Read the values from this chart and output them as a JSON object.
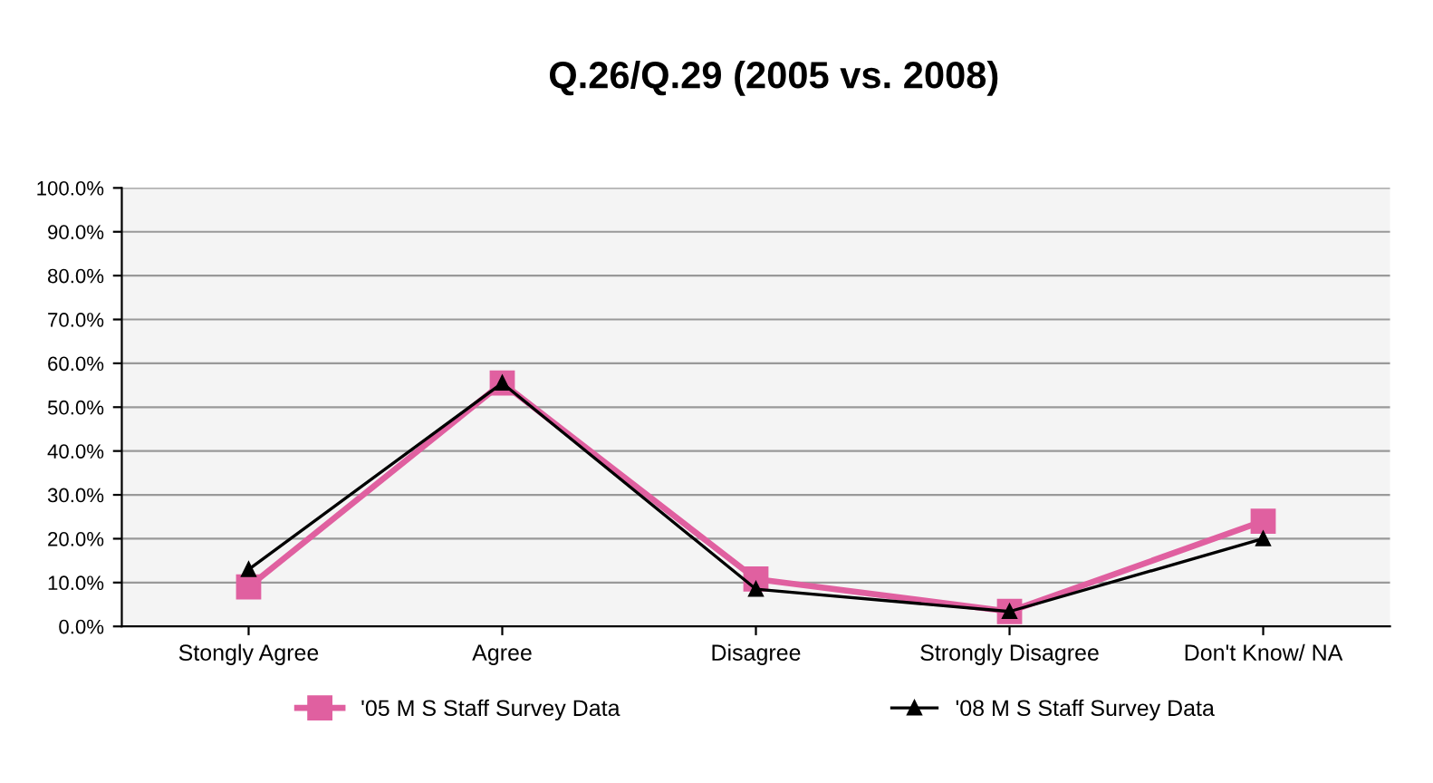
{
  "chart_data": {
    "type": "line",
    "title": "Q.26/Q.29 (2005 vs. 2008)",
    "categories": [
      "Stongly Agree",
      "Agree",
      "Disagree",
      "Strongly Disagree",
      "Don't Know/ NA"
    ],
    "series": [
      {
        "name": "'05 M S Staff Survey Data",
        "color": "#e060a0",
        "marker": "square",
        "values": [
          9,
          55.5,
          10.8,
          3.4,
          24
        ]
      },
      {
        "name": "'08 M S Staff Survey Data",
        "color": "#000000",
        "marker": "triangle",
        "values": [
          13,
          55.5,
          8.5,
          3.4,
          20
        ]
      }
    ],
    "ylim": [
      0,
      100
    ],
    "yticks": [
      {
        "value": 0,
        "label": "0.0%"
      },
      {
        "value": 10,
        "label": "10.0%"
      },
      {
        "value": 20,
        "label": "20.0%"
      },
      {
        "value": 30,
        "label": "30.0%"
      },
      {
        "value": 40,
        "label": "40.0%"
      },
      {
        "value": 50,
        "label": "50.0%"
      },
      {
        "value": 60,
        "label": "60.0%"
      },
      {
        "value": 70,
        "label": "70.0%"
      },
      {
        "value": 80,
        "label": "80.0%"
      },
      {
        "value": 90,
        "label": "90.0%"
      },
      {
        "value": 100,
        "label": "100.0%"
      }
    ],
    "grid": "y",
    "legend": "bottom"
  }
}
